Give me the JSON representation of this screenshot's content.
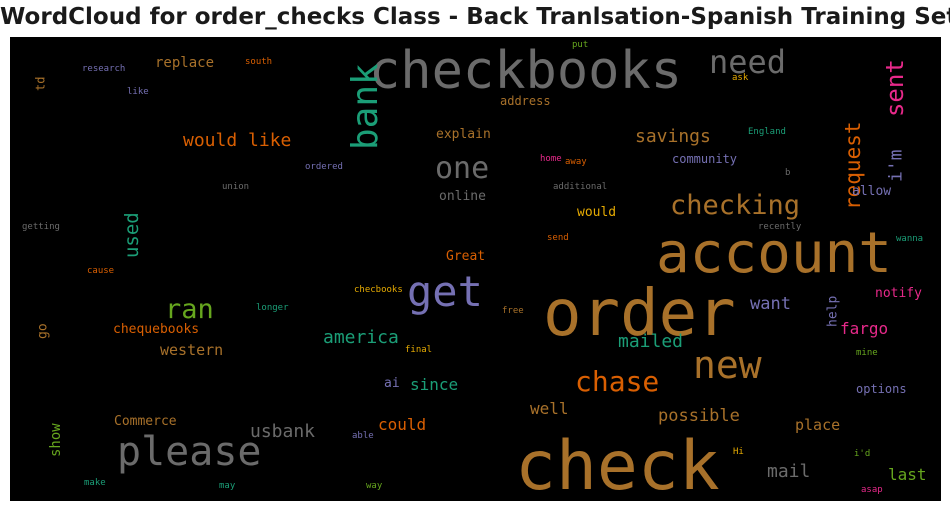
{
  "chart_data": {
    "type": "wordcloud",
    "title": "WordCloud for order_checks Class - Back Tranlsation-Spanish Training Set",
    "background": "#000000",
    "palette": {
      "brown": "#a8712a",
      "gray": "#6b6b6b",
      "teal": "#1b9e77",
      "purple": "#7570b3",
      "pink": "#e7298a",
      "orange": "#d95f02",
      "green": "#66a61e",
      "gold": "#e6ab02"
    },
    "words": [
      {
        "text": "check",
        "color": "brown"
      },
      {
        "text": "order",
        "color": "brown"
      },
      {
        "text": "account",
        "color": "brown"
      },
      {
        "text": "checkbooks",
        "color": "gray"
      },
      {
        "text": "please",
        "color": "gray"
      },
      {
        "text": "bank",
        "color": "teal"
      },
      {
        "text": "get",
        "color": "purple"
      },
      {
        "text": "new",
        "color": "brown"
      },
      {
        "text": "checking",
        "color": "brown"
      },
      {
        "text": "need",
        "color": "gray"
      },
      {
        "text": "one",
        "color": "gray"
      },
      {
        "text": "chase",
        "color": "orange"
      },
      {
        "text": "ran",
        "color": "green"
      },
      {
        "text": "sent",
        "color": "pink"
      },
      {
        "text": "request",
        "color": "orange"
      },
      {
        "text": "would like",
        "color": "orange"
      },
      {
        "text": "used",
        "color": "teal"
      },
      {
        "text": "i'm",
        "color": "purple"
      },
      {
        "text": "mailed",
        "color": "teal"
      },
      {
        "text": "savings",
        "color": "brown"
      },
      {
        "text": "america",
        "color": "teal"
      },
      {
        "text": "usbank",
        "color": "gray"
      },
      {
        "text": "possible",
        "color": "brown"
      },
      {
        "text": "mail",
        "color": "gray"
      },
      {
        "text": "fargo",
        "color": "pink"
      },
      {
        "text": "want",
        "color": "purple"
      },
      {
        "text": "last",
        "color": "green"
      },
      {
        "text": "since",
        "color": "teal"
      },
      {
        "text": "could",
        "color": "orange"
      },
      {
        "text": "well",
        "color": "brown"
      },
      {
        "text": "place",
        "color": "brown"
      },
      {
        "text": "western",
        "color": "brown"
      },
      {
        "text": "chequebooks",
        "color": "orange"
      },
      {
        "text": "replace",
        "color": "brown"
      },
      {
        "text": "explain",
        "color": "brown"
      },
      {
        "text": "community",
        "color": "purple"
      },
      {
        "text": "notify",
        "color": "pink"
      },
      {
        "text": "options",
        "color": "purple"
      },
      {
        "text": "allow",
        "color": "purple"
      },
      {
        "text": "help",
        "color": "purple"
      },
      {
        "text": "address",
        "color": "brown"
      },
      {
        "text": "online",
        "color": "gray"
      },
      {
        "text": "would",
        "color": "gold"
      },
      {
        "text": "Great",
        "color": "orange"
      },
      {
        "text": "Commerce",
        "color": "brown"
      },
      {
        "text": "show",
        "color": "green"
      },
      {
        "text": "ai",
        "color": "purple"
      },
      {
        "text": "go",
        "color": "brown"
      },
      {
        "text": "td",
        "color": "brown"
      },
      {
        "text": "research",
        "color": "purple"
      },
      {
        "text": "south",
        "color": "orange"
      },
      {
        "text": "like",
        "color": "purple"
      },
      {
        "text": "put",
        "color": "green"
      },
      {
        "text": "ask",
        "color": "gold"
      },
      {
        "text": "England",
        "color": "teal"
      },
      {
        "text": "ordered",
        "color": "purple"
      },
      {
        "text": "home",
        "color": "pink"
      },
      {
        "text": "away",
        "color": "orange"
      },
      {
        "text": "union",
        "color": "gray"
      },
      {
        "text": "additional",
        "color": "gray"
      },
      {
        "text": "b",
        "color": "gray"
      },
      {
        "text": "getting",
        "color": "gray"
      },
      {
        "text": "send",
        "color": "orange"
      },
      {
        "text": "recently",
        "color": "gray"
      },
      {
        "text": "wanna",
        "color": "teal"
      },
      {
        "text": "cause",
        "color": "orange"
      },
      {
        "text": "checbooks",
        "color": "gold"
      },
      {
        "text": "longer",
        "color": "teal"
      },
      {
        "text": "free",
        "color": "brown"
      },
      {
        "text": "final",
        "color": "gold"
      },
      {
        "text": "mine",
        "color": "green"
      },
      {
        "text": "able",
        "color": "purple"
      },
      {
        "text": "Hi",
        "color": "gold"
      },
      {
        "text": "i'd",
        "color": "green"
      },
      {
        "text": "make",
        "color": "teal"
      },
      {
        "text": "may",
        "color": "teal"
      },
      {
        "text": "way",
        "color": "green"
      },
      {
        "text": "asap",
        "color": "pink"
      }
    ]
  }
}
